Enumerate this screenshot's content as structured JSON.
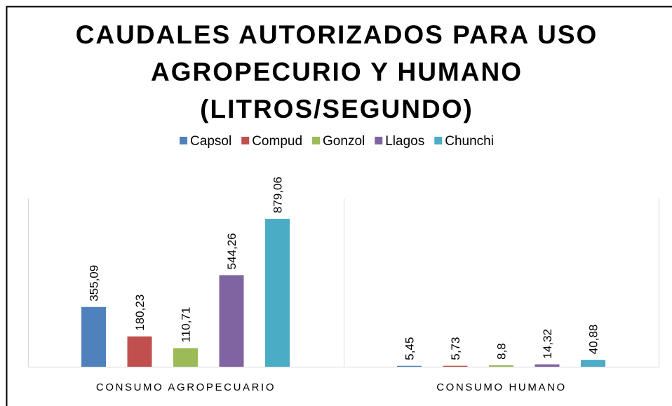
{
  "chart_data": {
    "type": "bar",
    "title": "CAUDALES AUTORIZADOS PARA USO AGROPECURIO Y HUMANO (LITROS/SEGUNDO)",
    "categories": [
      "CONSUMO AGROPECUARIO",
      "CONSUMO HUMANO"
    ],
    "series": [
      {
        "name": "Capsol",
        "color": "#4f81bd",
        "values": [
          355.09,
          5.45
        ],
        "value_labels": [
          "355,09",
          "5,45"
        ]
      },
      {
        "name": "Compud",
        "color": "#c0504d",
        "values": [
          180.23,
          5.73
        ],
        "value_labels": [
          "180,23",
          "5,73"
        ]
      },
      {
        "name": "Gonzol",
        "color": "#9bbb59",
        "values": [
          110.71,
          8.8
        ],
        "value_labels": [
          "110,71",
          "8,8"
        ]
      },
      {
        "name": "Llagos",
        "color": "#8064a2",
        "values": [
          544.26,
          14.32
        ],
        "value_labels": [
          "544,26",
          "14,32"
        ]
      },
      {
        "name": "Chunchi",
        "color": "#4bacc6",
        "values": [
          879.06,
          40.88
        ],
        "value_labels": [
          "879,06",
          "40,88"
        ]
      }
    ],
    "ylim": [
      0,
      1000
    ],
    "legend": "top"
  }
}
